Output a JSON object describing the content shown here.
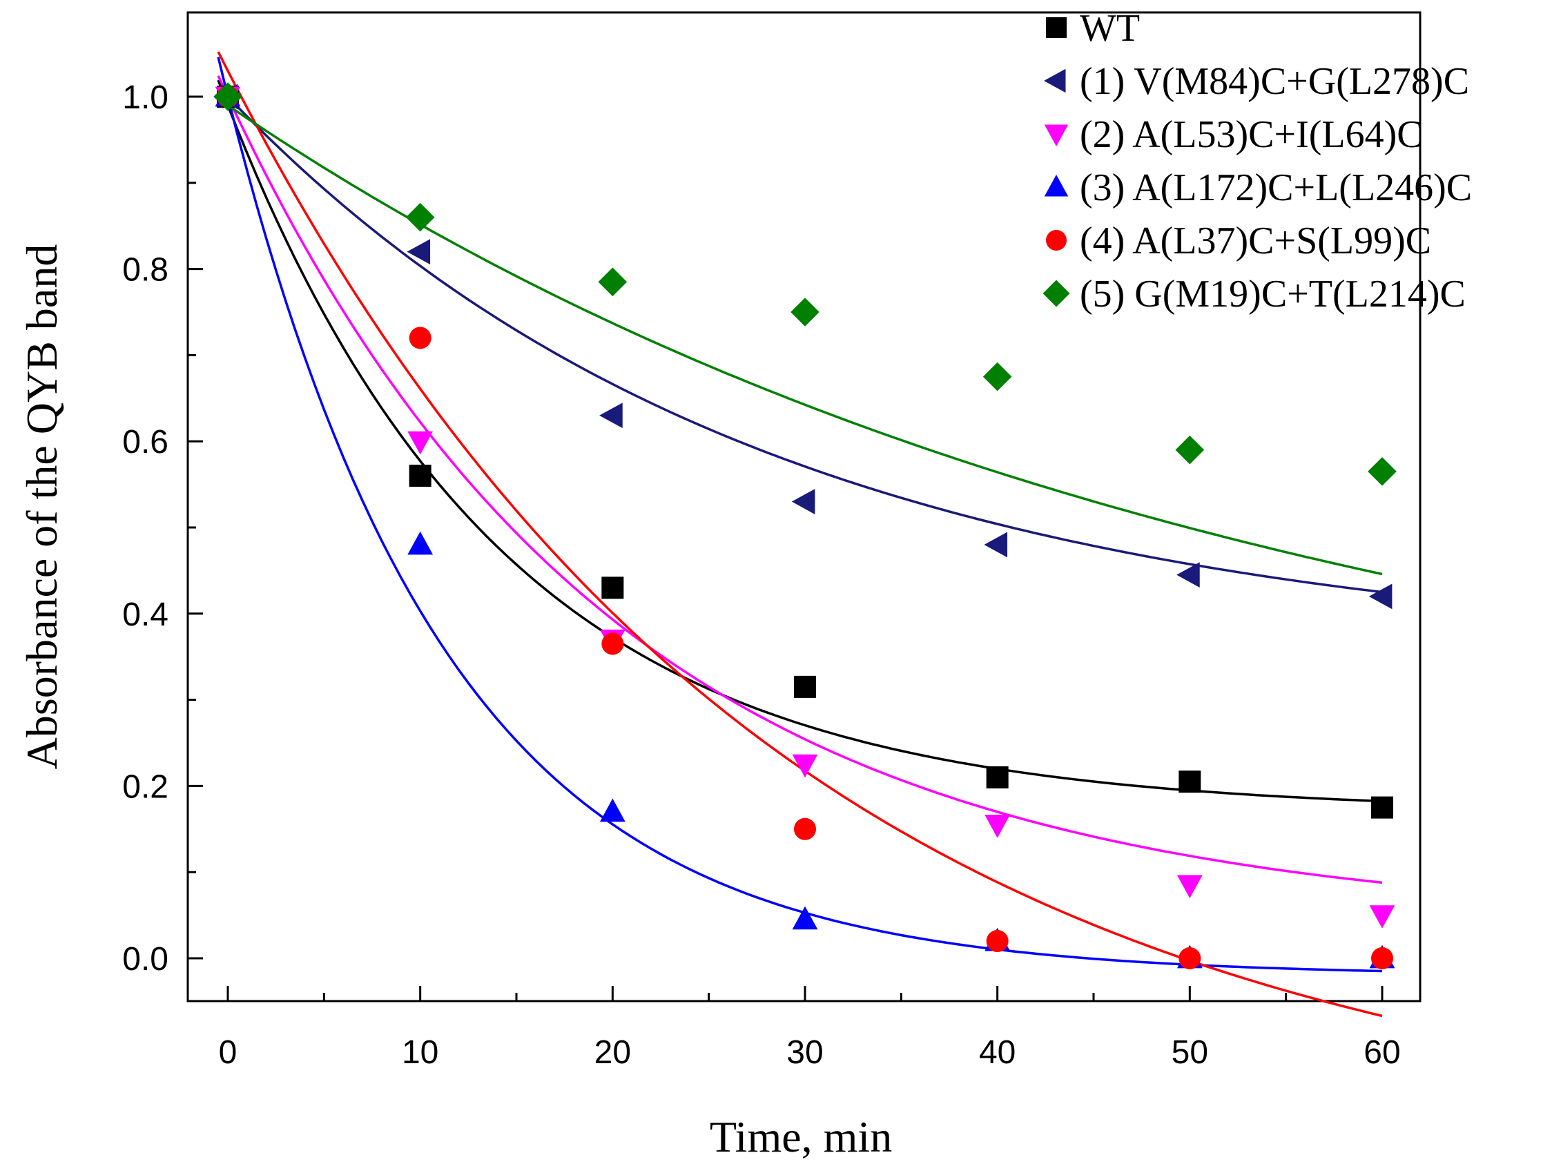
{
  "chart_data": {
    "type": "scatter",
    "xlabel": "Time, min",
    "ylabel": "Absorbance of the QYB band",
    "xlim": [
      -2,
      62
    ],
    "ylim": [
      -0.05,
      1.1
    ],
    "xticks": [
      0,
      10,
      20,
      30,
      40,
      50,
      60
    ],
    "yticks": [
      0.0,
      0.2,
      0.4,
      0.6,
      0.8,
      1.0
    ],
    "xtick_labels": [
      "0",
      "10",
      "20",
      "30",
      "40",
      "50",
      "60"
    ],
    "ytick_labels": [
      "0.0",
      "0.2",
      "0.4",
      "0.6",
      "0.8",
      "1.0"
    ],
    "grid": false,
    "legend_position": "top-right",
    "x": [
      0,
      10,
      20,
      30,
      40,
      50,
      60
    ],
    "series": [
      {
        "name": "WT",
        "marker": "square",
        "color": "#000000",
        "values": [
          1.0,
          0.56,
          0.43,
          0.315,
          0.21,
          0.205,
          0.175
        ],
        "fit": {
          "a": 0.82,
          "k": 0.07,
          "c": 0.17,
          "x_end": 60
        }
      },
      {
        "name": "(1) V(M84)C+G(L278)C",
        "marker": "triangle-left",
        "color": "#1a1a7a",
        "values": [
          1.0,
          0.82,
          0.63,
          0.53,
          0.48,
          0.445,
          0.42
        ],
        "fit": {
          "a": 0.65,
          "k": 0.036,
          "c": 0.35,
          "x_end": 60
        }
      },
      {
        "name": "(2) A(L53)C+I(L64)C",
        "marker": "triangle-down",
        "color": "#ff00ff",
        "values": [
          1.0,
          0.6,
          0.37,
          0.225,
          0.155,
          0.085,
          0.05
        ],
        "fit": {
          "a": 0.96,
          "k": 0.05,
          "c": 0.04,
          "x_end": 60
        }
      },
      {
        "name": "(3) A(L172)C+L(L246)C",
        "marker": "triangle-up",
        "color": "#0000ff",
        "values": [
          1.0,
          0.48,
          0.17,
          0.045,
          0.02,
          0.0,
          0.0
        ],
        "fit": {
          "a": 1.02,
          "k": 0.088,
          "c": -0.02,
          "x_end": 60
        }
      },
      {
        "name": "(4) A(L37)C+S(L99)C",
        "marker": "circle",
        "color": "#ff0000",
        "values": [
          1.0,
          0.72,
          0.365,
          0.15,
          0.02,
          0.0,
          0.0
        ],
        "fit": {
          "a": 1.25,
          "k": 0.035,
          "c": -0.22,
          "x_end": 60
        }
      },
      {
        "name": "(5) G(M19)C+T(L214)C",
        "marker": "diamond",
        "color": "#008000",
        "values": [
          1.0,
          0.86,
          0.785,
          0.75,
          0.675,
          0.59,
          0.565
        ],
        "fit": {
          "a": 0.8,
          "k": 0.019,
          "c": 0.19,
          "x_end": 60
        }
      }
    ]
  }
}
